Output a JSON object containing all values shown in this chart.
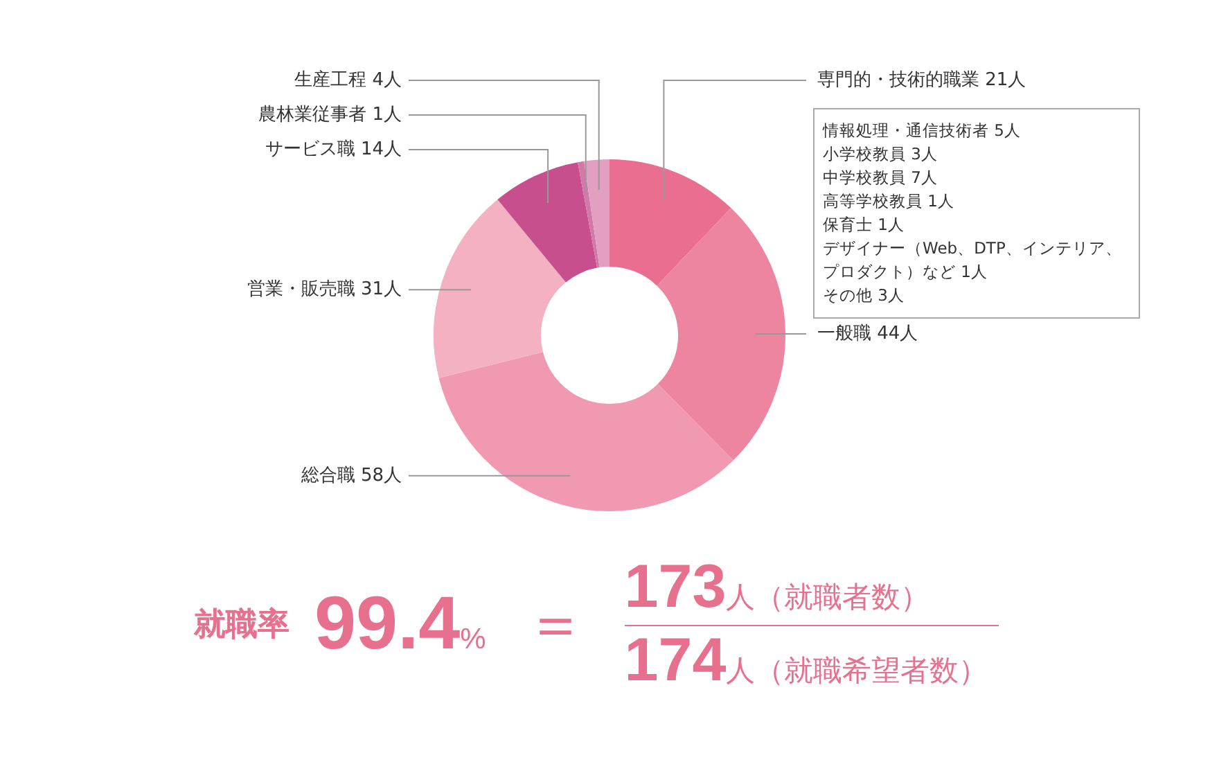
{
  "chart_data": {
    "type": "donut",
    "categories": [
      "専門的・技術的職業",
      "一般職",
      "総合職",
      "営業・販売職",
      "サービス職",
      "農林業従事者",
      "生産工程"
    ],
    "values": [
      21,
      44,
      58,
      31,
      14,
      1,
      4
    ],
    "value_labels": [
      "21人",
      "44人",
      "58人",
      "31人",
      "14人",
      "1人",
      "4人"
    ],
    "colors": [
      "#e96e8f",
      "#ee85a0",
      "#f199b1",
      "#f4b1c2",
      "#c84f8e",
      "#d17aaa",
      "#e29fc2"
    ],
    "legend": false,
    "annotations": [
      "就職率",
      "99.4%",
      "＝",
      "173人（就職者数）",
      "174人（就職希望者数）",
      "情報処理・通信技術者 5人",
      "小学校教員 3人",
      "中学校教員 7人",
      "高等学校教員 1人",
      "保育士 1人",
      "デザイナー（Web、DTP、インテリア、プロダクト）など 1人",
      "その他 3人"
    ]
  }
}
